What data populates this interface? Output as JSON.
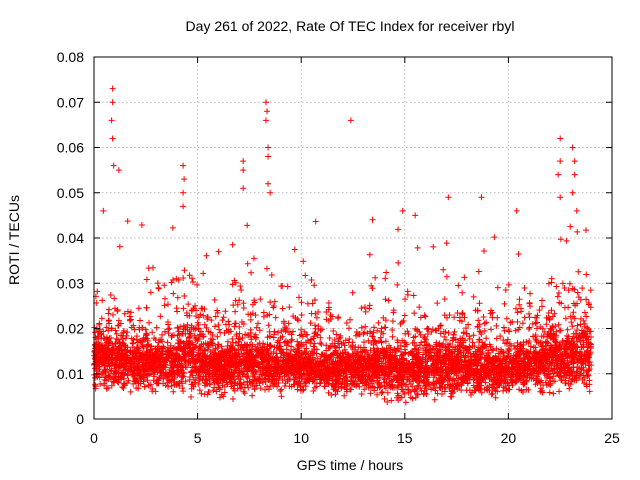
{
  "chart_data": {
    "type": "scatter",
    "title": "Day 261 of 2022, Rate Of TEC Index for receiver rbyl",
    "xlabel": "GPS time / hours",
    "ylabel": "ROTI / TECUs",
    "xlim": [
      0,
      25
    ],
    "ylim": [
      0,
      0.08
    ],
    "xticks": [
      0,
      5,
      10,
      15,
      20,
      25
    ],
    "xtick_labels": [
      "0",
      "5",
      "10",
      "15",
      "20",
      "25"
    ],
    "yticks": [
      0,
      0.01,
      0.02,
      0.03,
      0.04,
      0.05,
      0.06,
      0.07,
      0.08
    ],
    "ytick_labels": [
      "0",
      "0.01",
      "0.02",
      "0.03",
      "0.04",
      "0.05",
      "0.06",
      "0.07",
      "0.08"
    ],
    "grid": true,
    "marker": "+",
    "color": "#ff0000",
    "data_range": {
      "x": [
        0,
        24
      ],
      "y_min": 0.003,
      "y_max": 0.073
    },
    "notable_points": [
      {
        "x": 0.9,
        "y": 0.073
      },
      {
        "x": 0.9,
        "y": 0.07
      },
      {
        "x": 0.85,
        "y": 0.066
      },
      {
        "x": 0.9,
        "y": 0.062
      },
      {
        "x": 0.95,
        "y": 0.056
      },
      {
        "x": 1.2,
        "y": 0.055
      },
      {
        "x": 0.45,
        "y": 0.046
      },
      {
        "x": 4.3,
        "y": 0.056
      },
      {
        "x": 4.35,
        "y": 0.053
      },
      {
        "x": 4.3,
        "y": 0.05
      },
      {
        "x": 4.3,
        "y": 0.047
      },
      {
        "x": 7.2,
        "y": 0.057
      },
      {
        "x": 7.2,
        "y": 0.055
      },
      {
        "x": 7.2,
        "y": 0.051
      },
      {
        "x": 8.3,
        "y": 0.07
      },
      {
        "x": 8.35,
        "y": 0.068
      },
      {
        "x": 8.3,
        "y": 0.066
      },
      {
        "x": 8.4,
        "y": 0.06
      },
      {
        "x": 8.4,
        "y": 0.058
      },
      {
        "x": 8.4,
        "y": 0.052
      },
      {
        "x": 8.5,
        "y": 0.05
      },
      {
        "x": 12.4,
        "y": 0.066
      },
      {
        "x": 14.9,
        "y": 0.046
      },
      {
        "x": 15.5,
        "y": 0.045
      },
      {
        "x": 17.1,
        "y": 0.049
      },
      {
        "x": 18.7,
        "y": 0.049
      },
      {
        "x": 20.4,
        "y": 0.046
      },
      {
        "x": 22.5,
        "y": 0.062
      },
      {
        "x": 22.5,
        "y": 0.057
      },
      {
        "x": 23.1,
        "y": 0.06
      },
      {
        "x": 23.2,
        "y": 0.057
      },
      {
        "x": 22.4,
        "y": 0.054
      },
      {
        "x": 23.2,
        "y": 0.054
      },
      {
        "x": 23.1,
        "y": 0.05
      },
      {
        "x": 22.5,
        "y": 0.049
      },
      {
        "x": 23.3,
        "y": 0.046
      }
    ],
    "density_profile": [
      {
        "x": 0.5,
        "base": 0.013,
        "spread": 0.011
      },
      {
        "x": 2.0,
        "base": 0.012,
        "spread": 0.01
      },
      {
        "x": 3.5,
        "base": 0.012,
        "spread": 0.011
      },
      {
        "x": 4.5,
        "base": 0.013,
        "spread": 0.012
      },
      {
        "x": 6.0,
        "base": 0.011,
        "spread": 0.01
      },
      {
        "x": 7.5,
        "base": 0.012,
        "spread": 0.011
      },
      {
        "x": 9.0,
        "base": 0.011,
        "spread": 0.01
      },
      {
        "x": 10.5,
        "base": 0.011,
        "spread": 0.009
      },
      {
        "x": 11.8,
        "base": 0.01,
        "spread": 0.008
      },
      {
        "x": 13.5,
        "base": 0.011,
        "spread": 0.011
      },
      {
        "x": 15.0,
        "base": 0.01,
        "spread": 0.01
      },
      {
        "x": 16.5,
        "base": 0.011,
        "spread": 0.011
      },
      {
        "x": 18.0,
        "base": 0.011,
        "spread": 0.011
      },
      {
        "x": 19.5,
        "base": 0.01,
        "spread": 0.009
      },
      {
        "x": 21.0,
        "base": 0.012,
        "spread": 0.01
      },
      {
        "x": 22.5,
        "base": 0.013,
        "spread": 0.012
      },
      {
        "x": 24.0,
        "base": 0.014,
        "spread": 0.012
      }
    ]
  }
}
